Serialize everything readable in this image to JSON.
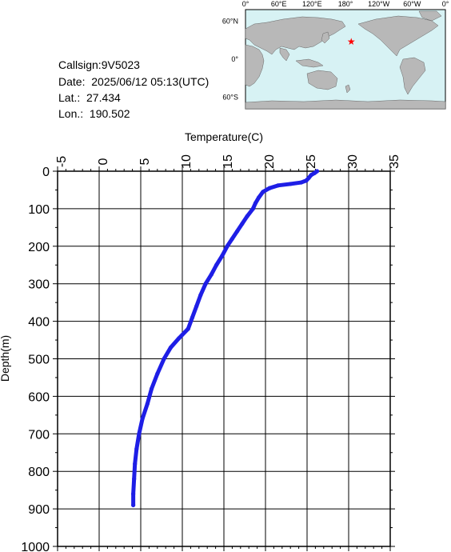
{
  "meta": {
    "callsign": "Callsign:9V5023",
    "date": "Date:  2025/06/12 05:13(UTC)",
    "lat": "Lat.:  27.434",
    "lon": "Lon.:  190.502"
  },
  "map": {
    "lon_labels": [
      "0°",
      "60°E",
      "120°E",
      "180°",
      "120°W",
      "60°W",
      "0°"
    ],
    "lat_labels": [
      "60°N",
      "0°",
      "60°S"
    ],
    "colors": {
      "ocean": "#d7f2f4",
      "land": "#b8b8b8",
      "marker": "#ff0000"
    },
    "marker": {
      "lat": 27.434,
      "lon": 190.502
    }
  },
  "chart_data": {
    "type": "line",
    "title": "",
    "xlabel": "Temperature(C)",
    "ylabel": "Depth(m)",
    "xlim": [
      -5,
      35
    ],
    "ylim": [
      1000,
      0
    ],
    "x_ticks": [
      "-5",
      "0",
      "5",
      "10",
      "15",
      "20",
      "25",
      "30",
      "35"
    ],
    "y_ticks": [
      "0",
      "100",
      "200",
      "300",
      "400",
      "500",
      "600",
      "700",
      "800",
      "900",
      "1000"
    ],
    "grid": true,
    "series": [
      {
        "color": "#1e1ee6",
        "points": [
          [
            26.2,
            0
          ],
          [
            25.9,
            5
          ],
          [
            25.5,
            10
          ],
          [
            25.2,
            18
          ],
          [
            24.9,
            25
          ],
          [
            24.3,
            30
          ],
          [
            23.0,
            34
          ],
          [
            21.5,
            38
          ],
          [
            20.5,
            45
          ],
          [
            19.7,
            55
          ],
          [
            19.2,
            70
          ],
          [
            18.8,
            85
          ],
          [
            18.5,
            100
          ],
          [
            17.8,
            120
          ],
          [
            17.2,
            140
          ],
          [
            16.6,
            160
          ],
          [
            16.0,
            180
          ],
          [
            15.4,
            200
          ],
          [
            14.8,
            225
          ],
          [
            14.1,
            250
          ],
          [
            13.5,
            275
          ],
          [
            12.8,
            300
          ],
          [
            12.2,
            330
          ],
          [
            11.7,
            360
          ],
          [
            11.2,
            390
          ],
          [
            10.7,
            420
          ],
          [
            9.6,
            445
          ],
          [
            8.6,
            470
          ],
          [
            7.8,
            500
          ],
          [
            7.0,
            540
          ],
          [
            6.3,
            580
          ],
          [
            5.8,
            620
          ],
          [
            5.2,
            660
          ],
          [
            4.8,
            700
          ],
          [
            4.5,
            740
          ],
          [
            4.3,
            780
          ],
          [
            4.2,
            820
          ],
          [
            4.1,
            860
          ],
          [
            4.1,
            890
          ]
        ]
      }
    ]
  }
}
